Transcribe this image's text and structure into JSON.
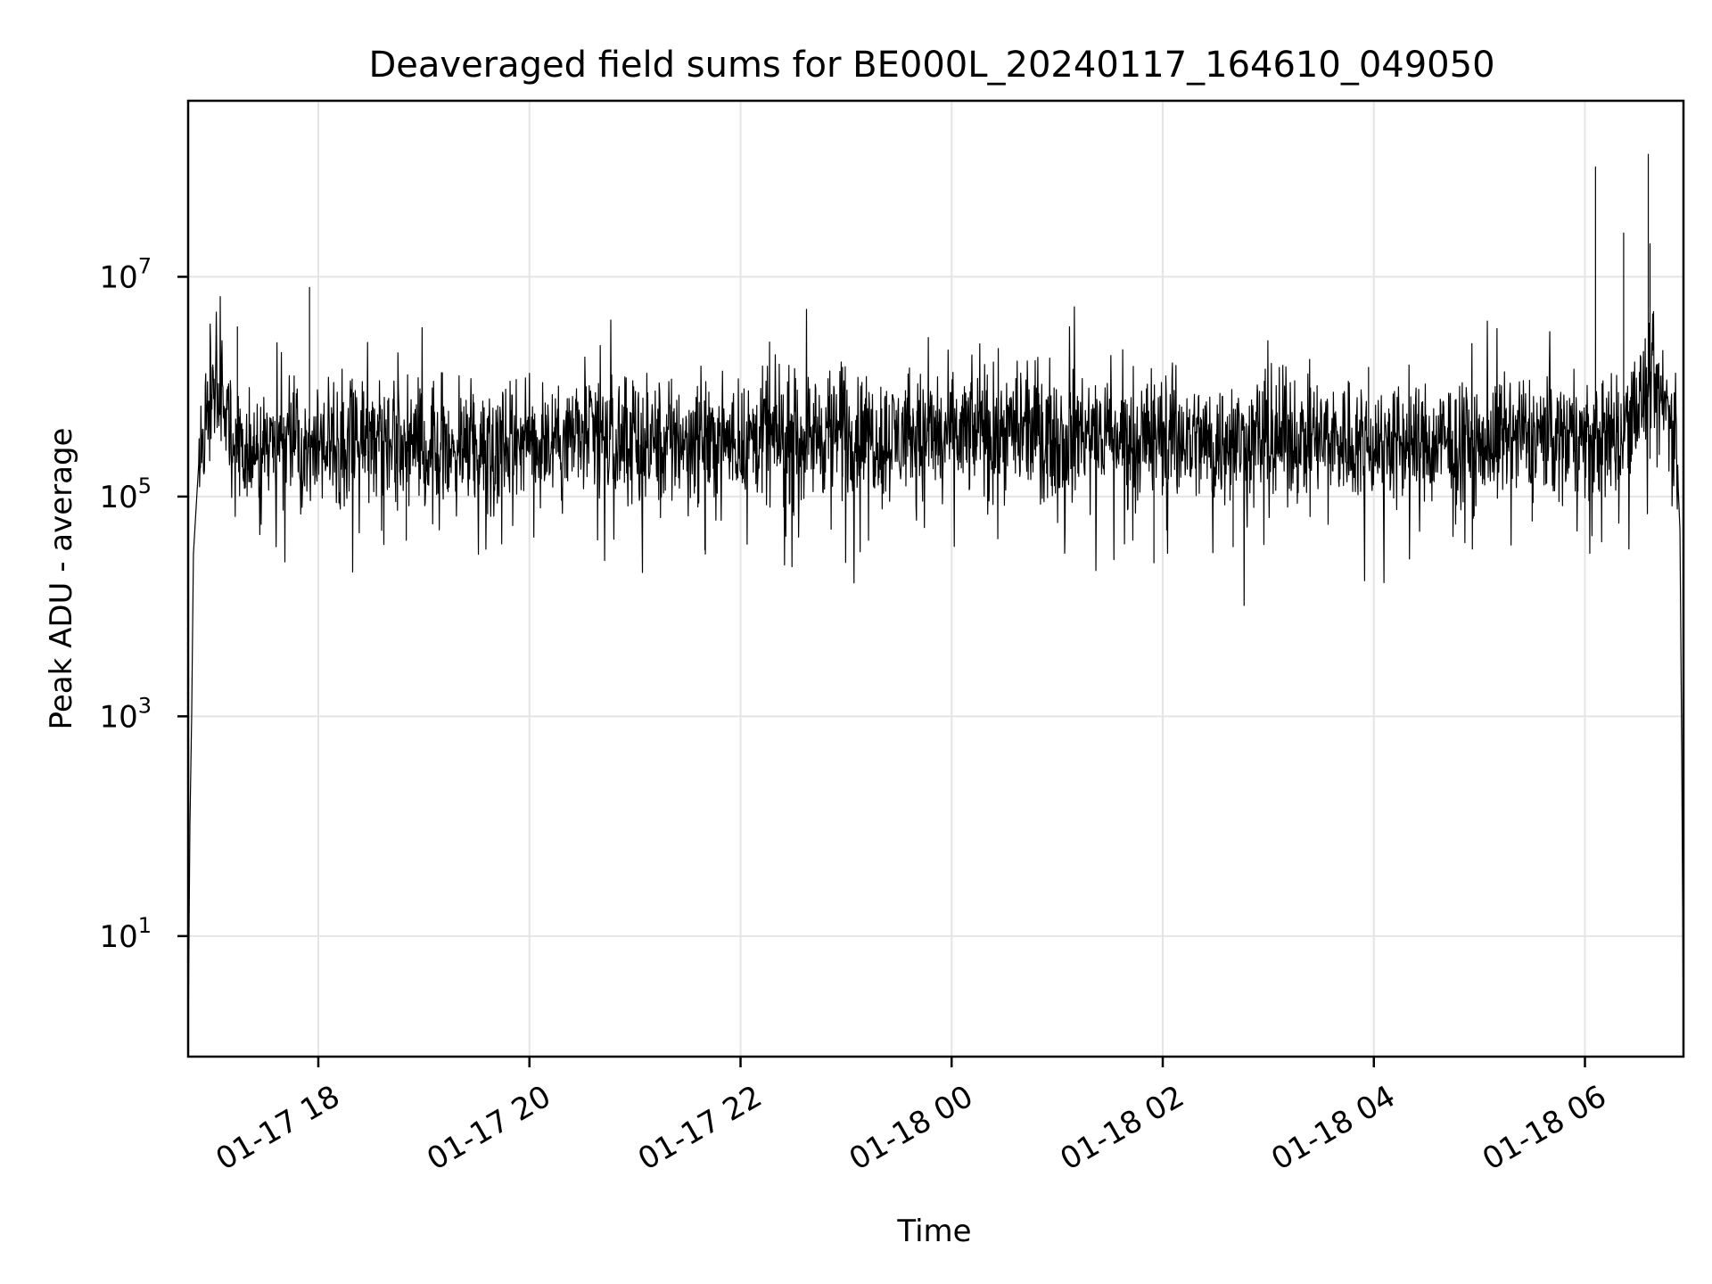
{
  "chart_data": {
    "type": "line",
    "title": "Deaveraged field sums for BE000L_20240117_164610_049050",
    "xlabel": "Time",
    "ylabel": "Peak ADU - average",
    "yscale": "log",
    "grid": true,
    "legend": "none",
    "line_color": "#000000",
    "xlim": [
      "2024-01-17 16:46",
      "2024-01-18 06:56"
    ],
    "ylim": [
      0.8,
      400000000
    ],
    "xticks": [
      {
        "value": "2024-01-17 18:00",
        "label": "01-17 18"
      },
      {
        "value": "2024-01-17 20:00",
        "label": "01-17 20"
      },
      {
        "value": "2024-01-17 22:00",
        "label": "01-17 22"
      },
      {
        "value": "2024-01-18 00:00",
        "label": "01-18 00"
      },
      {
        "value": "2024-01-18 02:00",
        "label": "01-18 02"
      },
      {
        "value": "2024-01-18 04:00",
        "label": "01-18 04"
      },
      {
        "value": "2024-01-18 06:00",
        "label": "01-18 06"
      }
    ],
    "yticks": [
      {
        "value": 10,
        "base": "10",
        "exp": "1"
      },
      {
        "value": 1000,
        "base": "10",
        "exp": "3"
      },
      {
        "value": 100000,
        "base": "10",
        "exp": "5"
      },
      {
        "value": 10000000,
        "base": "10",
        "exp": "7"
      }
    ],
    "series": [
      {
        "x": [
          "2024-01-17 16:46",
          "2024-01-17 16:47",
          "2024-01-17 16:48",
          "2024-01-17 16:49",
          "2024-01-17 16:52",
          "2024-01-17 16:55",
          "2024-01-17 17:00",
          "2024-01-17 17:05",
          "2024-01-17 17:10",
          "2024-01-17 17:20",
          "2024-01-17 17:30",
          "2024-01-17 17:45",
          "2024-01-17 17:55",
          "2024-01-17 18:10",
          "2024-01-17 18:30",
          "2024-01-17 19:00",
          "2024-01-17 19:30",
          "2024-01-17 20:00",
          "2024-01-17 20:30",
          "2024-01-17 21:00",
          "2024-01-17 21:30",
          "2024-01-17 22:00",
          "2024-01-17 22:30",
          "2024-01-17 23:00",
          "2024-01-17 23:30",
          "2024-01-18 00:00",
          "2024-01-18 00:30",
          "2024-01-18 01:00",
          "2024-01-18 01:30",
          "2024-01-18 02:00",
          "2024-01-18 02:30",
          "2024-01-18 03:00",
          "2024-01-18 03:30",
          "2024-01-18 04:00",
          "2024-01-18 04:30",
          "2024-01-18 05:00",
          "2024-01-18 05:30",
          "2024-01-18 06:00",
          "2024-01-18 06:20",
          "2024-01-18 06:30",
          "2024-01-18 06:40",
          "2024-01-18 06:48",
          "2024-01-18 06:52",
          "2024-01-18 06:54",
          "2024-01-18 06:55",
          "2024-01-18 06:56"
        ],
        "y": [
          1,
          100,
          1000,
          30000,
          200000,
          600000,
          1000000,
          800000,
          300000,
          250000,
          280000,
          350000,
          300000,
          320000,
          400000,
          280000,
          300000,
          330000,
          350000,
          300000,
          350000,
          320000,
          350000,
          380000,
          340000,
          360000,
          400000,
          380000,
          350000,
          380000,
          300000,
          350000,
          330000,
          320000,
          300000,
          300000,
          360000,
          330000,
          350000,
          700000,
          900000,
          600000,
          300000,
          50000,
          500,
          1
        ]
      }
    ],
    "peaks": [
      {
        "x": "2024-01-17 17:14",
        "y": 3500000
      },
      {
        "x": "2024-01-17 17:55",
        "y": 8000000
      },
      {
        "x": "2024-01-17 20:55",
        "y": 1200000
      },
      {
        "x": "2024-01-17 22:58",
        "y": 1500000
      },
      {
        "x": "2024-01-18 03:57",
        "y": 1500000
      },
      {
        "x": "2024-01-18 06:06",
        "y": 100000000
      },
      {
        "x": "2024-01-18 06:22",
        "y": 25000000
      },
      {
        "x": "2024-01-18 06:26",
        "y": 800000
      },
      {
        "x": "2024-01-18 06:36",
        "y": 130000000
      },
      {
        "x": "2024-01-18 06:37",
        "y": 20000000
      }
    ],
    "dips": [
      {
        "x": "2024-01-17 18:50",
        "y": 40000
      },
      {
        "x": "2024-01-17 21:40",
        "y": 30000
      },
      {
        "x": "2024-01-18 01:55",
        "y": 25000
      },
      {
        "x": "2024-01-18 02:40",
        "y": 35000
      },
      {
        "x": "2024-01-18 05:30",
        "y": 60000
      }
    ]
  }
}
